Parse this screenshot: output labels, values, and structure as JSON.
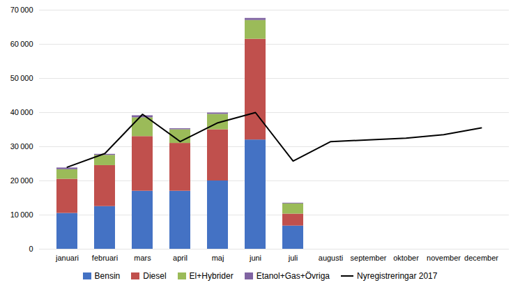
{
  "chart_data": {
    "type": "bar",
    "stacked": true,
    "categories": [
      "januari",
      "februari",
      "mars",
      "april",
      "maj",
      "juni",
      "juli",
      "augusti",
      "september",
      "oktober",
      "november",
      "december"
    ],
    "series": [
      {
        "name": "Bensin",
        "color": "#4472c4",
        "values": [
          10500,
          12500,
          17000,
          17000,
          20000,
          32000,
          6800,
          0,
          0,
          0,
          0,
          0
        ]
      },
      {
        "name": "Diesel",
        "color": "#c0504d",
        "values": [
          10000,
          12000,
          16000,
          14000,
          15000,
          29500,
          3500,
          0,
          0,
          0,
          0,
          0
        ]
      },
      {
        "name": "El+Hybrider",
        "color": "#9bbb59",
        "values": [
          2800,
          3000,
          5500,
          4000,
          4500,
          5500,
          3000,
          0,
          0,
          0,
          0,
          0
        ]
      },
      {
        "name": "Etanol+Gas+Övriga",
        "color": "#8064a2",
        "values": [
          500,
          300,
          600,
          300,
          400,
          600,
          200,
          0,
          0,
          0,
          0,
          0
        ]
      },
      {
        "name": "Nyregistreringar 2017",
        "type": "line",
        "color": "#000000",
        "values": [
          24000,
          28000,
          39500,
          31500,
          37000,
          40000,
          25800,
          31500,
          32000,
          32500,
          33500,
          35500
        ]
      }
    ],
    "ylim": [
      0,
      70000
    ],
    "yticks": [
      0,
      {
        "value": 10000,
        "label": "10 000"
      },
      {
        "value": 20000,
        "label": "20 000"
      },
      {
        "value": 30000,
        "label": "30 000"
      },
      {
        "value": 40000,
        "label": "40 000"
      },
      {
        "value": 50000,
        "label": "50 000"
      },
      {
        "value": 60000,
        "label": "60 000"
      },
      {
        "value": 70000,
        "label": "70 000"
      }
    ],
    "grid": true,
    "legend": "bottom"
  }
}
